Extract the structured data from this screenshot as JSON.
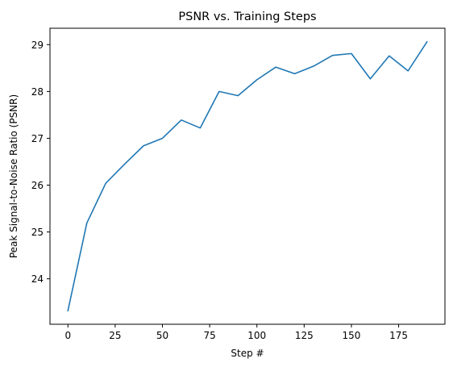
{
  "chart_data": {
    "type": "line",
    "title": "PSNR vs. Training Steps",
    "xlabel": "Step #",
    "ylabel": "Peak Signal-to-Noise Ratio (PSNR)",
    "x": [
      0,
      10,
      20,
      30,
      40,
      50,
      60,
      70,
      80,
      90,
      100,
      110,
      120,
      130,
      140,
      150,
      160,
      170,
      180,
      190
    ],
    "series": [
      {
        "color": "#1f77b4",
        "values": [
          23.32,
          25.19,
          26.04,
          26.45,
          26.84,
          27.0,
          27.39,
          27.22,
          28.0,
          27.91,
          28.25,
          28.52,
          28.38,
          28.54,
          28.77,
          28.81,
          28.27,
          28.76,
          28.44,
          29.06
        ]
      }
    ],
    "xlim": [
      -9.5,
      199.5
    ],
    "ylim": [
      23.03,
      29.35
    ],
    "xticks": [
      0,
      25,
      50,
      75,
      100,
      125,
      150,
      175
    ],
    "xtick_labels": [
      "0",
      "25",
      "50",
      "75",
      "100",
      "125",
      "150",
      "175"
    ],
    "yticks": [
      24,
      25,
      26,
      27,
      28,
      29
    ],
    "ytick_labels": [
      "24",
      "25",
      "26",
      "27",
      "28",
      "29"
    ],
    "grid": false,
    "legend": "none"
  }
}
